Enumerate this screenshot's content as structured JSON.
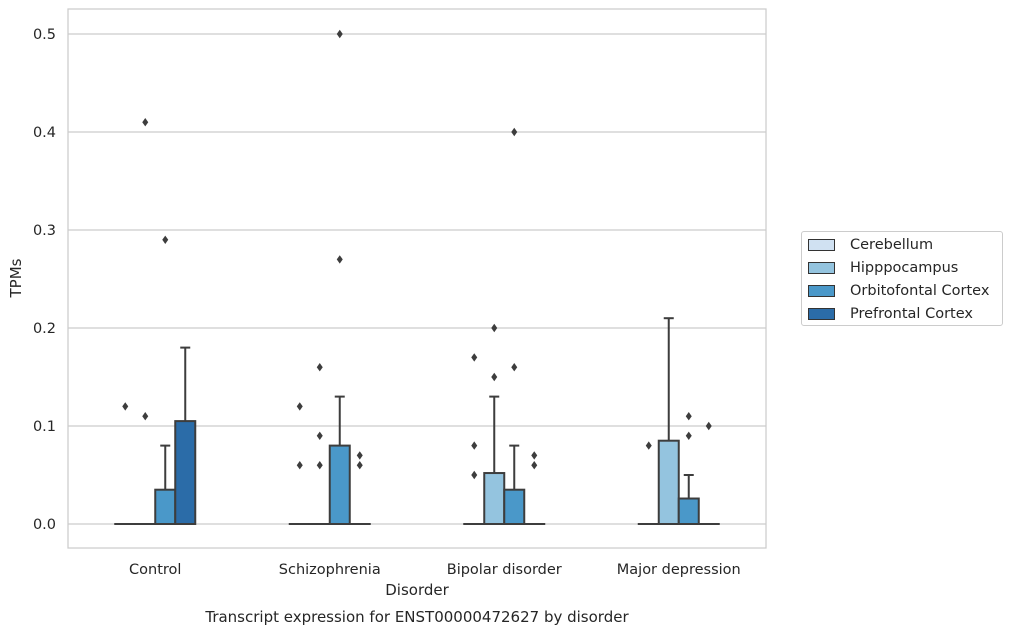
{
  "chart_data": {
    "type": "box",
    "caption": "Transcript expression for ENST00000472627 by disorder",
    "xlabel": "Disorder",
    "ylabel": "TPMs",
    "ylim": [
      -0.025,
      0.525
    ],
    "yticks": [
      "0.0",
      "0.1",
      "0.2",
      "0.3",
      "0.4",
      "0.5"
    ],
    "grid": true,
    "legend_position": "right",
    "categories": [
      "Control",
      "Schizophrenia",
      "Bipolar disorder",
      "Major depression"
    ],
    "series": [
      {
        "name": "Cerebellum",
        "color": "#d0e1f2",
        "boxes": [
          {
            "q1": 0,
            "median": 0,
            "q3": 0,
            "whisker_low": 0,
            "whisker_high": 0,
            "outliers": [
              0.12
            ]
          },
          {
            "q1": 0,
            "median": 0,
            "q3": 0,
            "whisker_low": 0,
            "whisker_high": 0,
            "outliers": [
              0.06,
              0.12
            ]
          },
          {
            "q1": 0,
            "median": 0,
            "q3": 0,
            "whisker_low": 0,
            "whisker_high": 0,
            "outliers": [
              0.05,
              0.08,
              0.17
            ]
          },
          {
            "q1": 0,
            "median": 0,
            "q3": 0,
            "whisker_low": 0,
            "whisker_high": 0,
            "outliers": [
              0.08
            ]
          }
        ]
      },
      {
        "name": "Hipppocampus",
        "color": "#94c4df",
        "boxes": [
          {
            "q1": 0,
            "median": 0,
            "q3": 0,
            "whisker_low": 0,
            "whisker_high": 0,
            "outliers": [
              0.11,
              0.41
            ]
          },
          {
            "q1": 0,
            "median": 0,
            "q3": 0,
            "whisker_low": 0,
            "whisker_high": 0,
            "outliers": [
              0.06,
              0.09,
              0.16
            ]
          },
          {
            "q1": 0,
            "median": 0,
            "q3": 0.052,
            "whisker_low": 0,
            "whisker_high": 0.13,
            "outliers": [
              0.15,
              0.2
            ]
          },
          {
            "q1": 0,
            "median": 0,
            "q3": 0.085,
            "whisker_low": 0,
            "whisker_high": 0.21,
            "outliers": []
          }
        ]
      },
      {
        "name": "Orbitofontal Cortex",
        "color": "#4a98c9",
        "boxes": [
          {
            "q1": 0,
            "median": 0,
            "q3": 0.035,
            "whisker_low": 0,
            "whisker_high": 0.08,
            "outliers": [
              0.29
            ]
          },
          {
            "q1": 0,
            "median": 0,
            "q3": 0.08,
            "whisker_low": 0,
            "whisker_high": 0.13,
            "outliers": [
              0.27,
              0.5
            ]
          },
          {
            "q1": 0,
            "median": 0,
            "q3": 0.035,
            "whisker_low": 0,
            "whisker_high": 0.08,
            "outliers": [
              0.16,
              0.4
            ]
          },
          {
            "q1": 0,
            "median": 0,
            "q3": 0.026,
            "whisker_low": 0,
            "whisker_high": 0.05,
            "outliers": [
              0.09,
              0.11
            ]
          }
        ]
      },
      {
        "name": "Prefrontal Cortex",
        "color": "#2b6ca8",
        "boxes": [
          {
            "q1": 0,
            "median": 0,
            "q3": 0.105,
            "whisker_low": 0,
            "whisker_high": 0.18,
            "outliers": []
          },
          {
            "q1": 0,
            "median": 0,
            "q3": 0,
            "whisker_low": 0,
            "whisker_high": 0,
            "outliers": [
              0.06,
              0.07
            ]
          },
          {
            "q1": 0,
            "median": 0,
            "q3": 0,
            "whisker_low": 0,
            "whisker_high": 0,
            "outliers": [
              0.06,
              0.07
            ]
          },
          {
            "q1": 0,
            "median": 0,
            "q3": 0,
            "whisker_low": 0,
            "whisker_high": 0,
            "outliers": [
              0.1
            ]
          }
        ]
      }
    ]
  }
}
